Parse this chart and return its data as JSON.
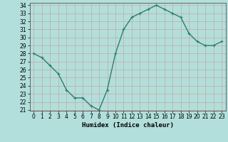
{
  "title": "",
  "xlabel": "Humidex (Indice chaleur)",
  "ylabel": "",
  "x": [
    0,
    1,
    2,
    3,
    4,
    5,
    6,
    7,
    8,
    9,
    10,
    11,
    12,
    13,
    14,
    15,
    16,
    17,
    18,
    19,
    20,
    21,
    22,
    23
  ],
  "y": [
    28,
    27.5,
    26.5,
    25.5,
    23.5,
    22.5,
    22.5,
    21.5,
    21,
    23.5,
    28,
    31,
    32.5,
    33,
    33.5,
    34,
    33.5,
    33,
    32.5,
    30.5,
    29.5,
    29,
    29,
    29.5
  ],
  "line_color": "#2e7d6e",
  "bg_color": "#b2dfdb",
  "grid_color": "#d0eeea",
  "ylim": [
    21,
    34
  ],
  "xlim": [
    -0.5,
    23.5
  ],
  "yticks": [
    21,
    22,
    23,
    24,
    25,
    26,
    27,
    28,
    29,
    30,
    31,
    32,
    33,
    34
  ],
  "xticks": [
    0,
    1,
    2,
    3,
    4,
    5,
    6,
    7,
    8,
    9,
    10,
    11,
    12,
    13,
    14,
    15,
    16,
    17,
    18,
    19,
    20,
    21,
    22,
    23
  ],
  "tick_fontsize": 5.5,
  "xlabel_fontsize": 6.5,
  "marker": "+",
  "marker_size": 3.5,
  "line_width": 1.0
}
